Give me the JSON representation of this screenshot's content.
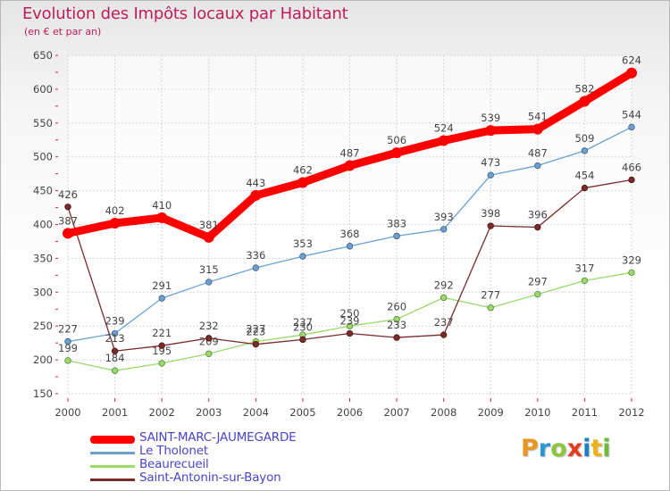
{
  "header": {
    "title": "Evolution des Impôts locaux par Habitant",
    "subtitle": "(en € et par an)"
  },
  "logo": {
    "letters": [
      "P",
      "r",
      "o",
      "x",
      "i",
      "t",
      "i"
    ],
    "text": "Proxiti",
    "colors": [
      "#e8961f",
      "#2a97d6",
      "#8cc63e",
      "#e83a1f",
      "#1f7fc4",
      "#f0b21a",
      "#6dbb3a"
    ]
  },
  "chart_data": {
    "type": "line",
    "title": "Evolution des Impôts locaux par Habitant",
    "subtitle": "(en € et par an)",
    "xlabel": "",
    "ylabel": "",
    "x": [
      "2000",
      "2001",
      "2002",
      "2003",
      "2004",
      "2005",
      "2006",
      "2007",
      "2008",
      "2009",
      "2010",
      "2011",
      "2012"
    ],
    "ylim": [
      150,
      650
    ],
    "yticks": [
      150,
      200,
      250,
      300,
      350,
      400,
      450,
      500,
      550,
      600,
      650
    ],
    "grid": true,
    "legend_position": "bottom-left",
    "series": [
      {
        "name": "SAINT-MARC-JAUMEGARDE",
        "color": "#ff0000",
        "emphasis": true,
        "values": [
          387,
          402,
          410,
          381,
          443,
          462,
          487,
          506,
          524,
          539,
          541,
          582,
          624
        ]
      },
      {
        "name": "Le Tholonet",
        "color": "#6aa0d2",
        "emphasis": false,
        "values": [
          227,
          239,
          291,
          315,
          336,
          353,
          368,
          383,
          393,
          473,
          487,
          509,
          544
        ]
      },
      {
        "name": "Beaurecueil",
        "color": "#99db6a",
        "emphasis": false,
        "values": [
          199,
          184,
          195,
          209,
          227,
          237,
          250,
          260,
          292,
          277,
          297,
          317,
          329
        ]
      },
      {
        "name": "Saint-Antonin-sur-Bayon",
        "color": "#7b2a2a",
        "emphasis": false,
        "values": [
          426,
          213,
          221,
          232,
          223,
          230,
          239,
          233,
          237,
          398,
          396,
          454,
          466
        ]
      }
    ]
  }
}
